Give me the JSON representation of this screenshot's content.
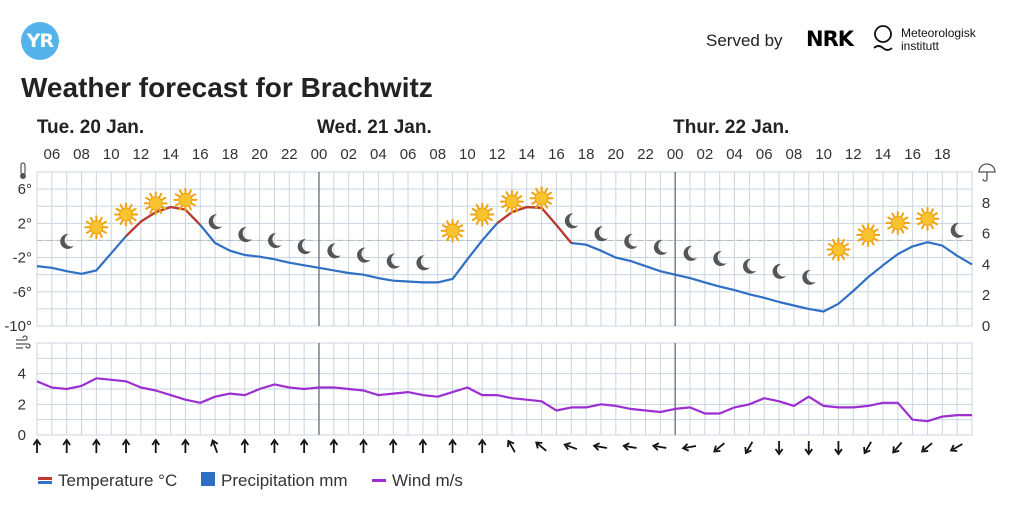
{
  "header": {
    "logo_text": "YR",
    "served_by": "Served by",
    "nrk": "NRK",
    "met_line1": "Meteorologisk",
    "met_line2": "institutt",
    "title": "Weather forecast for Brachwitz"
  },
  "legend": {
    "temperature": "Temperature °C",
    "precipitation": "Precipitation mm",
    "wind": "Wind m/s"
  },
  "colors": {
    "temp_warm": "#c0392b",
    "temp_cold": "#2f6fc4",
    "precip": "#2f6fc4",
    "wind": "#9b2fd1",
    "grid": "#c9d5e0"
  },
  "chart_data": {
    "type": "line",
    "days": [
      {
        "label": "Tue. 20 Jan.",
        "start_hour": 6
      },
      {
        "label": "Wed. 21 Jan.",
        "start_hour": 0
      },
      {
        "label": "Thur. 22 Jan.",
        "start_hour": 0
      }
    ],
    "hour_labels": [
      "06",
      "08",
      "10",
      "12",
      "14",
      "16",
      "18",
      "20",
      "22",
      "00",
      "02",
      "04",
      "06",
      "08",
      "10",
      "12",
      "14",
      "16",
      "18",
      "20",
      "22",
      "00",
      "02",
      "04",
      "06",
      "08",
      "10",
      "12",
      "14",
      "16",
      "18"
    ],
    "temperature": {
      "unit": "°C",
      "ylim": [
        -10,
        8
      ],
      "y_ticks": [
        "6°",
        "2°",
        "-2°",
        "-6°",
        "-10°"
      ],
      "y_tick_values": [
        6,
        2,
        -2,
        -6,
        -10
      ],
      "dashed_zero_line": 0,
      "x_hours": [
        5,
        6,
        7,
        8,
        9,
        10,
        11,
        12,
        13,
        14,
        15,
        16,
        17,
        18,
        19,
        20,
        21,
        22,
        23,
        24,
        25,
        26,
        27,
        28,
        29,
        30,
        31,
        32,
        33,
        34,
        35,
        36,
        37,
        38,
        39,
        40,
        41,
        42,
        43,
        44,
        45,
        46,
        47,
        48,
        49,
        50,
        51,
        52,
        53,
        54,
        55,
        56,
        57,
        58,
        59,
        60,
        61,
        62,
        63,
        64,
        65,
        66,
        67,
        68
      ],
      "values": [
        -3.0,
        -3.2,
        -3.6,
        -3.9,
        -3.5,
        -1.5,
        0.5,
        2.2,
        3.3,
        3.9,
        3.6,
        1.8,
        -0.3,
        -1.2,
        -1.7,
        -1.9,
        -2.2,
        -2.6,
        -2.9,
        -3.2,
        -3.5,
        -3.8,
        -4.0,
        -4.4,
        -4.7,
        -4.8,
        -4.9,
        -4.9,
        -4.5,
        -2.2,
        0.0,
        2.0,
        3.3,
        3.9,
        3.8,
        1.8,
        -0.3,
        -0.5,
        -1.2,
        -2.0,
        -2.4,
        -3.0,
        -3.6,
        -4.0,
        -4.4,
        -4.9,
        -5.4,
        -5.8,
        -6.3,
        -6.7,
        -7.2,
        -7.6,
        -8.0,
        -8.3,
        -7.4,
        -5.9,
        -4.3,
        -2.9,
        -1.6,
        -0.7,
        -0.2,
        -0.6,
        -1.8,
        -2.8
      ],
      "warm_ranges": [
        [
          11,
          16
        ],
        [
          36,
          41
        ]
      ]
    },
    "precipitation": {
      "unit": "mm",
      "right_ticks": [
        "8",
        "6",
        "4",
        "2",
        "0"
      ],
      "right_tick_values": [
        8,
        6,
        4,
        2,
        0
      ],
      "values": []
    },
    "symbols": {
      "x_hours": [
        7,
        9,
        11,
        13,
        15,
        17,
        19,
        21,
        23,
        25,
        27,
        29,
        31,
        33,
        35,
        37,
        39,
        41,
        43,
        45,
        47,
        49,
        51,
        53,
        55,
        57,
        59,
        61,
        63,
        65,
        67
      ],
      "types": [
        "moon",
        "sun",
        "sun",
        "sun",
        "sun",
        "moon",
        "moon",
        "moon",
        "moon",
        "moon",
        "moon",
        "moon",
        "moon",
        "sun",
        "sun",
        "sun",
        "sun",
        "moon",
        "moon",
        "moon",
        "moon",
        "moon",
        "moon",
        "moon",
        "moon",
        "moon",
        "sun",
        "sun",
        "sun",
        "sun",
        "moon"
      ],
      "temps": [
        -1.0,
        0.6,
        2.1,
        3.4,
        3.8,
        1.3,
        -0.2,
        -0.9,
        -1.6,
        -2.1,
        -2.6,
        -3.3,
        -3.5,
        0.2,
        2.1,
        3.6,
        4.0,
        1.4,
        -0.1,
        -1.0,
        -1.7,
        -2.4,
        -3.0,
        -3.9,
        -4.5,
        -5.2,
        -2.0,
        -0.3,
        1.1,
        1.6,
        0.3
      ]
    },
    "wind": {
      "unit": "m/s",
      "ylim": [
        0,
        6
      ],
      "y_ticks": [
        "4",
        "2",
        "0"
      ],
      "y_tick_values": [
        4,
        2,
        0
      ],
      "x_hours": [
        5,
        6,
        7,
        8,
        9,
        10,
        11,
        12,
        13,
        14,
        15,
        16,
        17,
        18,
        19,
        20,
        21,
        22,
        23,
        24,
        25,
        26,
        27,
        28,
        29,
        30,
        31,
        32,
        33,
        34,
        35,
        36,
        37,
        38,
        39,
        40,
        41,
        42,
        43,
        44,
        45,
        46,
        47,
        48,
        49,
        50,
        51,
        52,
        53,
        54,
        55,
        56,
        57,
        58,
        59,
        60,
        61,
        62,
        63,
        64,
        65,
        66,
        67,
        68
      ],
      "values": [
        3.5,
        3.1,
        3.0,
        3.2,
        3.7,
        3.6,
        3.5,
        3.1,
        2.9,
        2.6,
        2.3,
        2.1,
        2.5,
        2.7,
        2.6,
        3.0,
        3.3,
        3.1,
        3.0,
        3.1,
        3.1,
        3.0,
        2.9,
        2.6,
        2.7,
        2.8,
        2.6,
        2.5,
        2.8,
        3.1,
        2.6,
        2.6,
        2.4,
        2.3,
        2.2,
        1.6,
        1.8,
        1.8,
        2.0,
        1.9,
        1.7,
        1.6,
        1.5,
        1.7,
        1.8,
        1.4,
        1.4,
        1.8,
        2.0,
        2.4,
        2.2,
        1.9,
        2.5,
        1.9,
        1.8,
        1.8,
        1.9,
        2.1,
        2.1,
        1.0,
        0.9,
        1.2,
        1.3,
        1.3
      ]
    },
    "wind_arrows": {
      "x_hours": [
        5,
        7,
        9,
        11,
        13,
        15,
        17,
        19,
        21,
        23,
        25,
        27,
        29,
        31,
        33,
        35,
        37,
        39,
        41,
        43,
        45,
        47,
        49,
        51,
        53,
        55,
        57,
        59,
        61,
        63,
        65,
        67
      ],
      "directions_deg": [
        0,
        0,
        0,
        0,
        0,
        0,
        -20,
        0,
        0,
        0,
        0,
        0,
        0,
        0,
        0,
        0,
        -30,
        -50,
        -70,
        -80,
        -80,
        -80,
        -100,
        -130,
        -150,
        180,
        180,
        180,
        210,
        220,
        230,
        240
      ]
    }
  }
}
